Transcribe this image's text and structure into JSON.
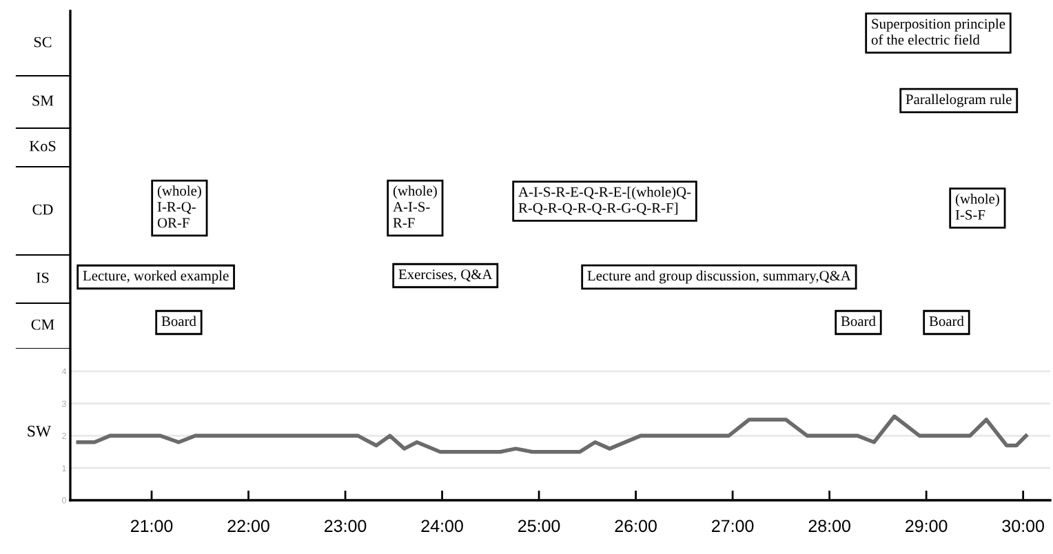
{
  "chart_data": {
    "type": "line",
    "ylabel": "SW",
    "color": "#6b6b6b",
    "line_style": "solid",
    "grid": "y",
    "x": [
      20.24,
      20.41,
      20.57,
      21.09,
      21.28,
      21.45,
      23.13,
      23.32,
      23.46,
      23.61,
      23.74,
      23.98,
      24.6,
      24.76,
      24.93,
      25.42,
      25.58,
      25.73,
      26.05,
      26.96,
      27.17,
      27.55,
      27.77,
      28.29,
      28.46,
      28.67,
      28.93,
      29.45,
      29.62,
      29.83,
      29.93,
      30.03
    ],
    "values": [
      1.8,
      1.8,
      2.0,
      2.0,
      1.8,
      2.0,
      2.0,
      1.7,
      2.0,
      1.6,
      1.8,
      1.5,
      1.5,
      1.6,
      1.5,
      1.5,
      1.8,
      1.6,
      2.0,
      2.0,
      2.5,
      2.5,
      2.0,
      2.0,
      1.8,
      2.6,
      2.0,
      2.0,
      2.5,
      1.7,
      1.7,
      2.0
    ],
    "xlim": [
      20.16,
      30.28
    ],
    "ylim": [
      0,
      15.17
    ],
    "xticks": [
      {
        "value": 21,
        "label": "21:00"
      },
      {
        "value": 22,
        "label": "22:00"
      },
      {
        "value": 23,
        "label": "23:00"
      },
      {
        "value": 24,
        "label": "24:00"
      },
      {
        "value": 25,
        "label": "25:00"
      },
      {
        "value": 26,
        "label": "26:00"
      },
      {
        "value": 27,
        "label": "27:00"
      },
      {
        "value": 28,
        "label": "28:00"
      },
      {
        "value": 29,
        "label": "29:00"
      },
      {
        "value": 30,
        "label": "30:00"
      }
    ],
    "yticks": [
      0,
      1,
      2,
      3,
      4
    ],
    "annotations": [
      "SC",
      "SM",
      "KoS",
      "CD",
      "IS",
      "CM",
      "(whole)\nI-R-Q-\nOR-F",
      "Lecture, worked example",
      "Board",
      "(whole)\nA-I-S-\nR-F",
      "Exercises, Q&A",
      "A-I-S-R-E-Q-R-E-[(whole)Q-\nR-Q-R-Q-R-Q-R-G-Q-R-F]",
      "Lecture and group discussion, summary,Q&A",
      "Superposition principle\nof the electric field",
      "Parallelogram rule",
      "(whole)\nI-S-F",
      "Board",
      "Board"
    ]
  }
}
